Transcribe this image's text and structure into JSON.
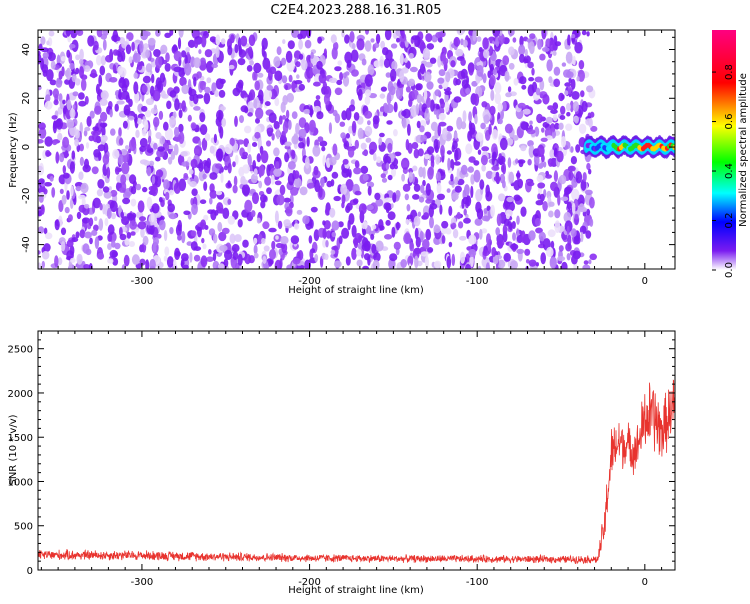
{
  "figure_title": "C2E4.2023.288.16.31.R05",
  "colors": {
    "snr_line": "#e8332e",
    "spectrogram_dots": "#7a1cf0",
    "spectrogram_light": "#c9a8f4",
    "axis": "#000000"
  },
  "chart_data": [
    {
      "type": "heatmap",
      "title": "",
      "xlabel": "Height of straight line (km)",
      "ylabel": "Frequency (Hz)",
      "xlim": [
        -362,
        18
      ],
      "ylim": [
        -50,
        48
      ],
      "xticks": [
        -300,
        -200,
        -100,
        0
      ],
      "xtick_labels": [
        "-300",
        "-200",
        "-100",
        "0"
      ],
      "yticks": [
        40,
        20,
        0,
        -20,
        -40
      ],
      "ytick_labels": [
        "40",
        "20",
        "0",
        "-20",
        "-40"
      ],
      "noise_region_x": [
        -362,
        -32
      ],
      "noise_level": "low (0.0-0.1)",
      "signal_band": {
        "x_range": [
          -35,
          18
        ],
        "freq_center": 0,
        "freq_halfwidth": 3,
        "peak_values": [
          {
            "x": -35,
            "value": 0.3
          },
          {
            "x": -30,
            "value": 0.4
          },
          {
            "x": -25,
            "value": 0.5
          },
          {
            "x": -20,
            "value": 0.6
          },
          {
            "x": -15,
            "value": 0.8
          },
          {
            "x": -10,
            "value": 0.7
          },
          {
            "x": -5,
            "value": 0.6
          },
          {
            "x": 0,
            "value": 0.95
          },
          {
            "x": 5,
            "value": 0.85
          },
          {
            "x": 10,
            "value": 0.9
          },
          {
            "x": 15,
            "value": 0.8
          }
        ]
      },
      "colorbar": {
        "label": "Normalized spectral amplitude",
        "ticks": [
          0.0,
          0.2,
          0.4,
          0.6,
          0.8
        ],
        "tick_labels": [
          "0.0",
          "0.2",
          "0.4",
          "0.6",
          "0.8"
        ],
        "range": [
          0,
          0.97
        ]
      }
    },
    {
      "type": "line",
      "title": "",
      "xlabel": "Height of straight line (km)",
      "ylabel": "SNR (10 * v/v)",
      "xlim": [
        -362,
        18
      ],
      "ylim": [
        0,
        2700
      ],
      "xticks": [
        -300,
        -200,
        -100,
        0
      ],
      "xtick_labels": [
        "-300",
        "-200",
        "-100",
        "0"
      ],
      "yticks": [
        0,
        500,
        1000,
        1500,
        2000,
        2500
      ],
      "ytick_labels": [
        "0",
        "500",
        "1000",
        "1500",
        "2000",
        "2500"
      ],
      "series": [
        {
          "color": "#e8332e",
          "envelope": [
            {
              "x": -362,
              "mean": 170,
              "noise": 70
            },
            {
              "x": -300,
              "mean": 165,
              "noise": 65
            },
            {
              "x": -250,
              "mean": 150,
              "noise": 60
            },
            {
              "x": -200,
              "mean": 135,
              "noise": 55
            },
            {
              "x": -150,
              "mean": 128,
              "noise": 50
            },
            {
              "x": -100,
              "mean": 125,
              "noise": 50
            },
            {
              "x": -50,
              "mean": 120,
              "noise": 50
            },
            {
              "x": -28,
              "mean": 120,
              "noise": 55
            },
            {
              "x": -24,
              "mean": 500,
              "noise": 300
            },
            {
              "x": -20,
              "mean": 1300,
              "noise": 350
            },
            {
              "x": -15,
              "mean": 1450,
              "noise": 350
            },
            {
              "x": -10,
              "mean": 1400,
              "noise": 300
            },
            {
              "x": -5,
              "mean": 1350,
              "noise": 300
            },
            {
              "x": 0,
              "mean": 1700,
              "noise": 450
            },
            {
              "x": 5,
              "mean": 1750,
              "noise": 500
            },
            {
              "x": 10,
              "mean": 1550,
              "noise": 400
            },
            {
              "x": 18,
              "mean": 1900,
              "noise": 400
            }
          ]
        }
      ]
    }
  ]
}
